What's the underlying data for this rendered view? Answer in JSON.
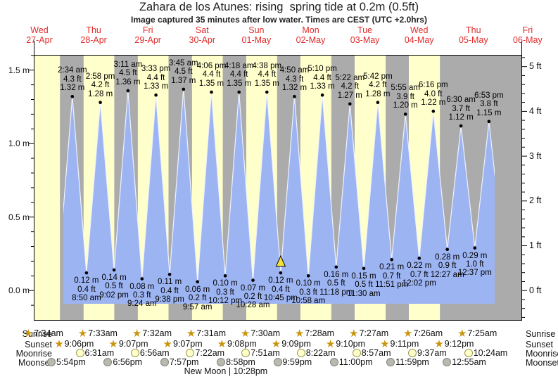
{
  "title": "Zahara de los Atunes: rising  spring tide at 0.2m (0.5ft)",
  "subtitle": "Image captured 35 minutes after low water. Times are CEST (UTC +2.0hrs)",
  "days": [
    {
      "weekday": "Wed",
      "date": "27-Apr"
    },
    {
      "weekday": "Thu",
      "date": "28-Apr"
    },
    {
      "weekday": "Fri",
      "date": "29-Apr"
    },
    {
      "weekday": "Sat",
      "date": "30-Apr"
    },
    {
      "weekday": "Sun",
      "date": "01-May"
    },
    {
      "weekday": "Mon",
      "date": "02-May"
    },
    {
      "weekday": "Tue",
      "date": "03-May"
    },
    {
      "weekday": "Wed",
      "date": "04-May"
    },
    {
      "weekday": "Thu",
      "date": "05-May"
    },
    {
      "weekday": "Fri",
      "date": "06-May"
    }
  ],
  "y_axis_left": {
    "unit": "m",
    "ticks": [
      {
        "label": "0.0 m",
        "value": 0
      },
      {
        "label": "0.5 m",
        "value": 0.5
      },
      {
        "label": "1.0 m",
        "value": 1.0
      },
      {
        "label": "1.5 m",
        "value": 1.5
      }
    ]
  },
  "y_axis_right": {
    "unit": "ft",
    "ticks": [
      {
        "label": "0 ft",
        "value": 0
      },
      {
        "label": "1 ft",
        "value": 1
      },
      {
        "label": "2 ft",
        "value": 2
      },
      {
        "label": "3 ft",
        "value": 3
      },
      {
        "label": "4 ft",
        "value": 4
      },
      {
        "label": "5 ft",
        "value": 5
      }
    ]
  },
  "chart_data": {
    "type": "area",
    "title": "Zahara de los Atunes: rising spring tide at 0.2m (0.5ft)",
    "x_range_days": [
      "27-Apr",
      "06-May"
    ],
    "y_range_m": [
      -0.2,
      1.65
    ],
    "y_range_ft": [
      -0.6,
      5.4
    ],
    "legend": "none",
    "grid": "off",
    "high_tides": [
      {
        "day": 1,
        "time": "2:34 am",
        "ft": "4.3",
        "m": "1.32"
      },
      {
        "day": 1,
        "time": "2:58 pm",
        "ft": "4.2",
        "m": "1.28"
      },
      {
        "day": 2,
        "time": "3:11 am",
        "ft": "4.5",
        "m": "1.36"
      },
      {
        "day": 2,
        "time": "3:33 pm",
        "ft": "4.4",
        "m": "1.33"
      },
      {
        "day": 3,
        "time": "3:45 am",
        "ft": "4.5",
        "m": "1.37"
      },
      {
        "day": 3,
        "time": "4:06 pm",
        "ft": "4.4",
        "m": "1.35"
      },
      {
        "day": 4,
        "time": "4:18 am",
        "ft": "4.4",
        "m": "1.35"
      },
      {
        "day": 4,
        "time": "4:38 pm",
        "ft": "4.4",
        "m": "1.35"
      },
      {
        "day": 5,
        "time": "4:50 am",
        "ft": "4.3",
        "m": "1.32"
      },
      {
        "day": 5,
        "time": "5:10 pm",
        "ft": "4.4",
        "m": "1.33"
      },
      {
        "day": 6,
        "time": "5:22 am",
        "ft": "4.2",
        "m": "1.27"
      },
      {
        "day": 6,
        "time": "5:42 pm",
        "ft": "4.2",
        "m": "1.28"
      },
      {
        "day": 7,
        "time": "5:55 am",
        "ft": "3.9",
        "m": "1.20"
      },
      {
        "day": 7,
        "time": "6:16 pm",
        "ft": "4.0",
        "m": "1.22"
      },
      {
        "day": 8,
        "time": "6:30 am",
        "ft": "3.7",
        "m": "1.12"
      },
      {
        "day": 8,
        "time": "6:53 pm",
        "ft": "3.8",
        "m": "1.15"
      }
    ],
    "low_tides": [
      {
        "day": 1,
        "time": "8:50 am",
        "ft": "0.4",
        "m": "0.12"
      },
      {
        "day": 1,
        "time": "9:02 pm",
        "ft": "0.5",
        "m": "0.14"
      },
      {
        "day": 2,
        "time": "9:24 am",
        "ft": "0.3",
        "m": "0.08"
      },
      {
        "day": 2,
        "time": "9:38 pm",
        "ft": "0.4",
        "m": "0.11"
      },
      {
        "day": 3,
        "time": "9:57 am",
        "ft": "0.2",
        "m": "0.06"
      },
      {
        "day": 3,
        "time": "10:12 pm",
        "ft": "0.3",
        "m": "0.10"
      },
      {
        "day": 4,
        "time": "10:28 am",
        "ft": "0.2",
        "m": "0.07"
      },
      {
        "day": 4,
        "time": "10:45 pm",
        "ft": "0.4",
        "m": "0.12"
      },
      {
        "day": 5,
        "time": "10:58 am",
        "ft": "0.3",
        "m": "0.10"
      },
      {
        "day": 5,
        "time": "11:18 pm",
        "ft": "0.5",
        "m": "0.16"
      },
      {
        "day": 6,
        "time": "11:30 am",
        "ft": "0.5",
        "m": "0.15"
      },
      {
        "day": 6,
        "time": "11:51 pm",
        "ft": "0.7",
        "m": "0.21"
      },
      {
        "day": 7,
        "time": "12:02 pm",
        "ft": "0.7",
        "m": "0.22"
      },
      {
        "day": 8,
        "time": "12:27 am",
        "ft": "0.9",
        "m": "0.28"
      },
      {
        "day": 8,
        "time": "12:37 pm",
        "ft": "1.0",
        "m": "0.29"
      }
    ],
    "current_level_marker": {
      "shape": "triangle-up",
      "level_m": "0.2",
      "near_low_time": "10:45 pm",
      "day": 4
    }
  },
  "astro_rows": [
    {
      "id": "sunrise",
      "label": "Sunrise",
      "icon": "sunrise-star-icon",
      "times": [
        {
          "day": 0,
          "time": "7:34am"
        },
        {
          "day": 1,
          "time": "7:33am"
        },
        {
          "day": 2,
          "time": "7:32am"
        },
        {
          "day": 3,
          "time": "7:31am"
        },
        {
          "day": 4,
          "time": "7:30am"
        },
        {
          "day": 5,
          "time": "7:28am"
        },
        {
          "day": 6,
          "time": "7:27am"
        },
        {
          "day": 7,
          "time": "7:26am"
        },
        {
          "day": 8,
          "time": "7:25am"
        }
      ]
    },
    {
      "id": "sunset",
      "label": "Sunset",
      "icon": "sunset-star-icon",
      "times": [
        {
          "day": 0,
          "time": "9:06pm"
        },
        {
          "day": 1,
          "time": "9:07pm"
        },
        {
          "day": 2,
          "time": "9:07pm"
        },
        {
          "day": 3,
          "time": "9:08pm"
        },
        {
          "day": 4,
          "time": "9:09pm"
        },
        {
          "day": 5,
          "time": "9:10pm"
        },
        {
          "day": 6,
          "time": "9:11pm"
        },
        {
          "day": 7,
          "time": "9:12pm"
        }
      ]
    },
    {
      "id": "moonrise",
      "label": "Moonrise",
      "icon": "moonrise-circle-icon",
      "times": [
        {
          "day": 1,
          "time": "6:31am"
        },
        {
          "day": 2,
          "time": "6:56am"
        },
        {
          "day": 3,
          "time": "7:22am"
        },
        {
          "day": 4,
          "time": "7:51am"
        },
        {
          "day": 5,
          "time": "8:22am"
        },
        {
          "day": 6,
          "time": "8:57am"
        },
        {
          "day": 7,
          "time": "9:37am"
        },
        {
          "day": 8,
          "time": "10:24am"
        }
      ]
    },
    {
      "id": "moonset",
      "label": "Moonset",
      "icon": "moonset-circle-icon",
      "times": [
        {
          "day": 0,
          "time": "5:54pm"
        },
        {
          "day": 1,
          "time": "6:56pm"
        },
        {
          "day": 2,
          "time": "7:57pm"
        },
        {
          "day": 3,
          "time": "8:58pm"
        },
        {
          "day": 4,
          "time": "9:59pm"
        },
        {
          "day": 5,
          "time": "11:00pm"
        },
        {
          "day": 6,
          "time": "11:59pm"
        },
        {
          "day": 8,
          "time": "12:55am"
        }
      ]
    }
  ],
  "footer_moon_phase": {
    "event": "New Moon",
    "separator": "|",
    "time": "10:28pm",
    "day": 3
  },
  "colors": {
    "day_band": "#ffffcc",
    "night_band": "#ababab",
    "tide_fill": "#9db4f2",
    "tide_edge": "#eef2ff",
    "date_text": "#e12b2b",
    "star_icon": "#c8950e",
    "moonrise_icon_fill": "#ffffcc",
    "moonrise_icon_border": "#99994d",
    "moonset_icon_fill": "#b9b9b0",
    "moonset_icon_border": "#83837a",
    "marker_fill": "#f0e13c",
    "axis": "#000000"
  }
}
